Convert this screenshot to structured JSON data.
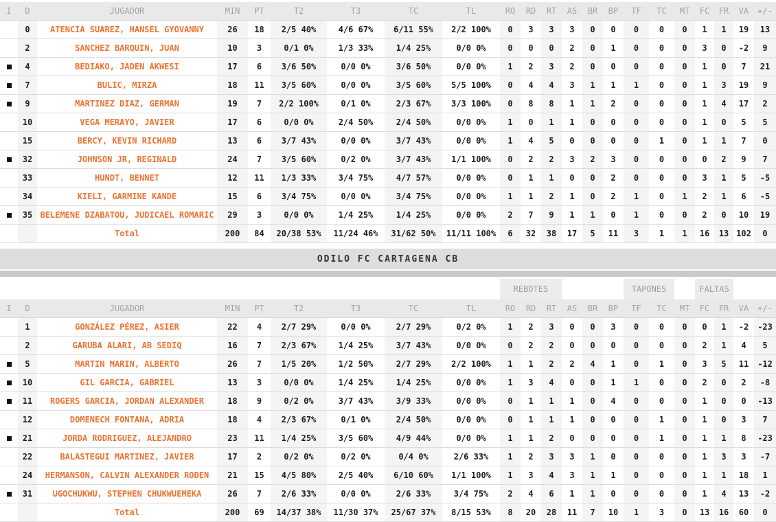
{
  "columns": [
    "I",
    "D",
    "JUGADOR",
    "MIN",
    "PT",
    "T2",
    "T3",
    "TC",
    "TL",
    "RO",
    "RD",
    "RT",
    "AS",
    "BR",
    "BP",
    "TF",
    "TC",
    "MT",
    "FC",
    "FR",
    "VA",
    "+/-"
  ],
  "stat_keys": [
    "min",
    "pt",
    "t2",
    "t3",
    "tc",
    "tl",
    "ro",
    "rd",
    "rt",
    "as",
    "br",
    "bp",
    "tf",
    "tc-against",
    "mt",
    "fc",
    "fr",
    "va",
    "plus-minus"
  ],
  "group_headers": {
    "rebotes": "REBOTES",
    "tapones": "TAPONES",
    "faltas": "FALTAS"
  },
  "team2": {
    "title": "ODILO FC CARTAGENA CB"
  },
  "colors": {
    "accent_orange": "#ed7332",
    "header_bg": "#e9e9e9",
    "header_text": "#a3a3a3",
    "column_shade": "#f4f4f4",
    "team_bar_bg": "#dedede",
    "team_bar_stripe": "#cacaca",
    "starter_marker": "#111111"
  },
  "table1": {
    "rows": [
      {
        "starter": false,
        "dorsal": "0",
        "player": "ATENCIA SUAREZ, HANSEL GYOVANNY",
        "stats": [
          "26",
          "18",
          "2/5 40%",
          "4/6 67%",
          "6/11 55%",
          "2/2 100%",
          "0",
          "3",
          "3",
          "3",
          "0",
          "0",
          "0",
          "0",
          "0",
          "1",
          "1",
          "19",
          "13"
        ]
      },
      {
        "starter": false,
        "dorsal": "2",
        "player": "SANCHEZ BARQUIN, JUAN",
        "stats": [
          "10",
          "3",
          "0/1 0%",
          "1/3 33%",
          "1/4 25%",
          "0/0 0%",
          "0",
          "0",
          "0",
          "2",
          "0",
          "1",
          "0",
          "0",
          "0",
          "3",
          "0",
          "-2",
          "9"
        ]
      },
      {
        "starter": true,
        "dorsal": "4",
        "player": "BEDIAKO, JADEN AKWESI",
        "stats": [
          "17",
          "6",
          "3/6 50%",
          "0/0 0%",
          "3/6 50%",
          "0/0 0%",
          "1",
          "2",
          "3",
          "2",
          "0",
          "0",
          "0",
          "0",
          "0",
          "1",
          "0",
          "7",
          "21"
        ]
      },
      {
        "starter": true,
        "dorsal": "7",
        "player": "BULIC, MIRZA",
        "stats": [
          "18",
          "11",
          "3/5 60%",
          "0/0 0%",
          "3/5 60%",
          "5/5 100%",
          "0",
          "4",
          "4",
          "3",
          "1",
          "1",
          "1",
          "0",
          "0",
          "1",
          "3",
          "19",
          "9"
        ]
      },
      {
        "starter": true,
        "dorsal": "9",
        "player": "MARTINEZ DIAZ, GERMAN",
        "stats": [
          "19",
          "7",
          "2/2 100%",
          "0/1 0%",
          "2/3 67%",
          "3/3 100%",
          "0",
          "8",
          "8",
          "1",
          "1",
          "2",
          "0",
          "0",
          "0",
          "1",
          "4",
          "17",
          "2"
        ]
      },
      {
        "starter": false,
        "dorsal": "10",
        "player": "VEGA MERAYO, JAVIER",
        "stats": [
          "17",
          "6",
          "0/0 0%",
          "2/4 50%",
          "2/4 50%",
          "0/0 0%",
          "1",
          "0",
          "1",
          "1",
          "0",
          "0",
          "0",
          "0",
          "0",
          "1",
          "0",
          "5",
          "5"
        ]
      },
      {
        "starter": false,
        "dorsal": "15",
        "player": "BERCY, KEVIN RICHARD",
        "stats": [
          "13",
          "6",
          "3/7 43%",
          "0/0 0%",
          "3/7 43%",
          "0/0 0%",
          "1",
          "4",
          "5",
          "0",
          "0",
          "0",
          "0",
          "1",
          "0",
          "1",
          "1",
          "7",
          "0"
        ]
      },
      {
        "starter": true,
        "dorsal": "32",
        "player": "JOHNSON JR, REGINALD",
        "stats": [
          "24",
          "7",
          "3/5 60%",
          "0/2 0%",
          "3/7 43%",
          "1/1 100%",
          "0",
          "2",
          "2",
          "3",
          "2",
          "3",
          "0",
          "0",
          "0",
          "0",
          "2",
          "9",
          "7"
        ]
      },
      {
        "starter": false,
        "dorsal": "33",
        "player": "HUNDT, BENNET",
        "stats": [
          "12",
          "11",
          "1/3 33%",
          "3/4 75%",
          "4/7 57%",
          "0/0 0%",
          "0",
          "1",
          "1",
          "0",
          "0",
          "2",
          "0",
          "0",
          "0",
          "3",
          "1",
          "5",
          "-5"
        ]
      },
      {
        "starter": false,
        "dorsal": "34",
        "player": "KIELI, GARMINE KANDE",
        "stats": [
          "15",
          "6",
          "3/4 75%",
          "0/0 0%",
          "3/4 75%",
          "0/0 0%",
          "1",
          "1",
          "2",
          "1",
          "0",
          "2",
          "1",
          "0",
          "1",
          "2",
          "1",
          "6",
          "-5"
        ]
      },
      {
        "starter": true,
        "dorsal": "35",
        "player": "BELEMENE DZABATOU, JUDICAEL ROMARIC",
        "stats": [
          "29",
          "3",
          "0/0 0%",
          "1/4 25%",
          "1/4 25%",
          "0/0 0%",
          "2",
          "7",
          "9",
          "1",
          "1",
          "0",
          "1",
          "0",
          "0",
          "2",
          "0",
          "10",
          "19"
        ]
      }
    ],
    "total": {
      "label": "Total",
      "stats": [
        "200",
        "84",
        "20/38 53%",
        "11/24 46%",
        "31/62 50%",
        "11/11 100%",
        "6",
        "32",
        "38",
        "17",
        "5",
        "11",
        "3",
        "1",
        "1",
        "16",
        "13",
        "102",
        "0"
      ]
    }
  },
  "table2": {
    "rows": [
      {
        "starter": false,
        "dorsal": "1",
        "player": "GONZÁLEZ PÉREZ, ASIER",
        "stats": [
          "22",
          "4",
          "2/7 29%",
          "0/0 0%",
          "2/7 29%",
          "0/2 0%",
          "1",
          "2",
          "3",
          "0",
          "0",
          "3",
          "0",
          "0",
          "0",
          "0",
          "1",
          "-2",
          "-23"
        ]
      },
      {
        "starter": false,
        "dorsal": "2",
        "player": "GARUBA ALARI, AB SEDIQ",
        "stats": [
          "16",
          "7",
          "2/3 67%",
          "1/4 25%",
          "3/7 43%",
          "0/0 0%",
          "0",
          "2",
          "2",
          "0",
          "0",
          "0",
          "0",
          "0",
          "0",
          "2",
          "1",
          "4",
          "5"
        ]
      },
      {
        "starter": true,
        "dorsal": "5",
        "player": "MARTIN MARIN, ALBERTO",
        "stats": [
          "26",
          "7",
          "1/5 20%",
          "1/2 50%",
          "2/7 29%",
          "2/2 100%",
          "1",
          "1",
          "2",
          "2",
          "4",
          "1",
          "0",
          "1",
          "0",
          "3",
          "5",
          "11",
          "-12"
        ]
      },
      {
        "starter": true,
        "dorsal": "10",
        "player": "GIL GARCIA, GABRIEL",
        "stats": [
          "13",
          "3",
          "0/0 0%",
          "1/4 25%",
          "1/4 25%",
          "0/0 0%",
          "1",
          "3",
          "4",
          "0",
          "0",
          "1",
          "1",
          "0",
          "0",
          "2",
          "0",
          "2",
          "-8"
        ]
      },
      {
        "starter": true,
        "dorsal": "11",
        "player": "ROGERS GARCIA, JORDAN ALEXANDER",
        "stats": [
          "18",
          "9",
          "0/2 0%",
          "3/7 43%",
          "3/9 33%",
          "0/0 0%",
          "0",
          "1",
          "1",
          "1",
          "0",
          "4",
          "0",
          "0",
          "0",
          "1",
          "0",
          "0",
          "-13"
        ]
      },
      {
        "starter": false,
        "dorsal": "12",
        "player": "DOMENECH FONTANA, ADRIA",
        "stats": [
          "18",
          "4",
          "2/3 67%",
          "0/1 0%",
          "2/4 50%",
          "0/0 0%",
          "0",
          "1",
          "1",
          "1",
          "0",
          "0",
          "0",
          "1",
          "0",
          "1",
          "0",
          "3",
          "7"
        ]
      },
      {
        "starter": true,
        "dorsal": "21",
        "player": "JORDA RODRIGUEZ, ALEJANDRO",
        "stats": [
          "23",
          "11",
          "1/4 25%",
          "3/5 60%",
          "4/9 44%",
          "0/0 0%",
          "1",
          "1",
          "2",
          "0",
          "0",
          "0",
          "0",
          "1",
          "0",
          "1",
          "1",
          "8",
          "-23"
        ]
      },
      {
        "starter": false,
        "dorsal": "22",
        "player": "BALASTEGUI MARTINEZ, JAVIER",
        "stats": [
          "17",
          "2",
          "0/2 0%",
          "0/2 0%",
          "0/4 0%",
          "2/6 33%",
          "1",
          "2",
          "3",
          "3",
          "1",
          "0",
          "0",
          "0",
          "0",
          "1",
          "3",
          "3",
          "-7"
        ]
      },
      {
        "starter": false,
        "dorsal": "24",
        "player": "HERMANSON, CALVIN ALEXANDER RODEN",
        "stats": [
          "21",
          "15",
          "4/5 80%",
          "2/5 40%",
          "6/10 60%",
          "1/1 100%",
          "1",
          "3",
          "4",
          "3",
          "1",
          "1",
          "0",
          "0",
          "0",
          "1",
          "1",
          "18",
          "1"
        ]
      },
      {
        "starter": true,
        "dorsal": "31",
        "player": "UGOCHUKWU, STEPHEN CHUKWUEMEKA",
        "stats": [
          "26",
          "7",
          "2/6 33%",
          "0/0 0%",
          "2/6 33%",
          "3/4 75%",
          "2",
          "4",
          "6",
          "1",
          "1",
          "0",
          "0",
          "0",
          "0",
          "1",
          "4",
          "13",
          "-2"
        ]
      }
    ],
    "total": {
      "label": "Total",
      "stats": [
        "200",
        "69",
        "14/37 38%",
        "11/30 37%",
        "25/67 37%",
        "8/15 53%",
        "8",
        "20",
        "28",
        "11",
        "7",
        "10",
        "1",
        "3",
        "0",
        "13",
        "16",
        "60",
        "0"
      ]
    }
  }
}
